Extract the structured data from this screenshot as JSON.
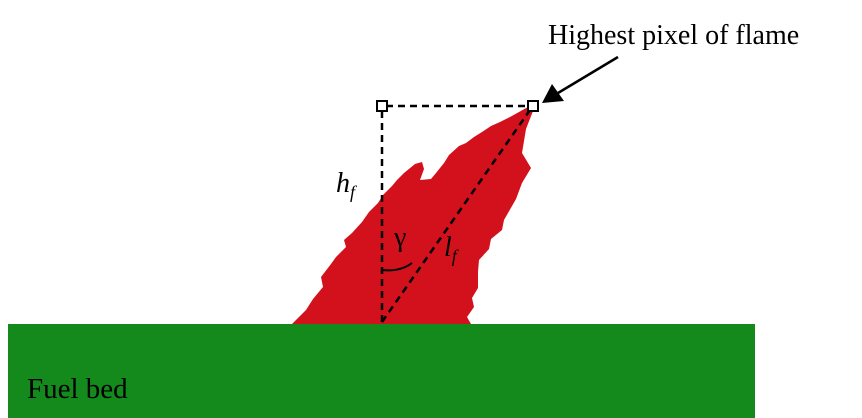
{
  "labels": {
    "highest_pixel": "Highest pixel of flame",
    "flame_height_symbol": "h",
    "flame_height_subscript": "f",
    "flame_length_symbol": "l",
    "flame_length_subscript": "f",
    "tilt_angle_symbol": "γ",
    "fuel_bed": "Fuel bed"
  },
  "colors": {
    "background": "#ffffff",
    "flame": "#d2111c",
    "fuel_bed": "#148a1c",
    "lines": "#000000"
  }
}
